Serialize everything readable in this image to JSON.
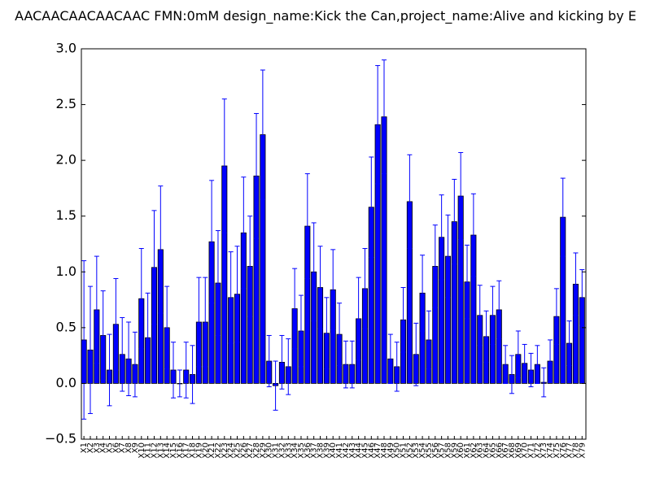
{
  "chart_data": {
    "type": "bar",
    "title": "AACAACAACAACAAC  FMN:0mM  design_name:Kick the Can,project_name:Alive and kicking by E",
    "xlabel": "",
    "ylabel": "",
    "ylim": [
      -0.5,
      3.0
    ],
    "y_ticks": [
      "−0.5",
      "0.0",
      "0.5",
      "1.0",
      "1.5",
      "2.0",
      "2.5",
      "3.0"
    ],
    "y_tick_values": [
      -0.5,
      0.0,
      0.5,
      1.0,
      1.5,
      2.0,
      2.5,
      3.0
    ],
    "grid": false,
    "colors": {
      "bar": "#0000ff",
      "edge": "#000000",
      "error": "#0000ff",
      "axis": "#000000"
    },
    "categories": [
      "X1",
      "X2",
      "X3",
      "X4",
      "X5",
      "X6",
      "X7",
      "X8",
      "X9",
      "X10",
      "X11",
      "X12",
      "X13",
      "X14",
      "X15",
      "X16",
      "X17",
      "X18",
      "X19",
      "X20",
      "X21",
      "X22",
      "X23",
      "X24",
      "X25",
      "X26",
      "X27",
      "X28",
      "X29",
      "X30",
      "X31",
      "X32",
      "X33",
      "X34",
      "X35",
      "X36",
      "X37",
      "X38",
      "X39",
      "X40",
      "X41",
      "X42",
      "X43",
      "X44",
      "X45",
      "X46",
      "X47",
      "X48",
      "X49",
      "X50",
      "X51",
      "X52",
      "X53",
      "X54",
      "X55",
      "X56",
      "X57",
      "X58",
      "X59",
      "X60",
      "X61",
      "X62",
      "X63",
      "X64",
      "X65",
      "X66",
      "X67",
      "X68",
      "X69",
      "X70",
      "X71",
      "X72",
      "X73",
      "X74",
      "X75",
      "X76",
      "X77",
      "X78",
      "X79"
    ],
    "values": [
      0.39,
      0.3,
      0.66,
      0.43,
      0.12,
      0.53,
      0.26,
      0.22,
      0.17,
      0.76,
      0.41,
      1.04,
      1.2,
      0.5,
      0.12,
      0.0,
      0.12,
      0.08,
      0.55,
      0.55,
      1.27,
      0.9,
      1.95,
      0.77,
      0.8,
      1.35,
      1.05,
      1.86,
      2.23,
      0.2,
      -0.02,
      0.19,
      0.15,
      0.67,
      0.47,
      1.41,
      1.0,
      0.86,
      0.45,
      0.84,
      0.44,
      0.17,
      0.17,
      0.58,
      0.85,
      1.58,
      2.32,
      2.39,
      0.22,
      0.15,
      0.57,
      1.63,
      0.26,
      0.81,
      0.39,
      1.05,
      1.31,
      1.14,
      1.45,
      1.68,
      0.91,
      1.33,
      0.61,
      0.42,
      0.61,
      0.66,
      0.17,
      0.08,
      0.26,
      0.18,
      0.12,
      0.17,
      0.01,
      0.2,
      0.6,
      1.49,
      0.36,
      0.89,
      0.77
    ],
    "errors": [
      0.71,
      0.57,
      0.48,
      0.4,
      0.32,
      0.41,
      0.33,
      0.33,
      0.29,
      0.45,
      0.4,
      0.51,
      0.57,
      0.37,
      0.25,
      0.12,
      0.25,
      0.26,
      0.4,
      0.4,
      0.55,
      0.47,
      0.6,
      0.41,
      0.43,
      0.5,
      0.45,
      0.56,
      0.58,
      0.23,
      0.22,
      0.24,
      0.25,
      0.36,
      0.32,
      0.47,
      0.44,
      0.37,
      0.32,
      0.36,
      0.28,
      0.21,
      0.21,
      0.37,
      0.36,
      0.45,
      0.53,
      0.51,
      0.22,
      0.22,
      0.29,
      0.42,
      0.28,
      0.34,
      0.26,
      0.37,
      0.38,
      0.37,
      0.38,
      0.39,
      0.33,
      0.37,
      0.27,
      0.23,
      0.26,
      0.26,
      0.17,
      0.17,
      0.21,
      0.17,
      0.15,
      0.17,
      0.13,
      0.19,
      0.25,
      0.35,
      0.2,
      0.28,
      0.25
    ]
  }
}
